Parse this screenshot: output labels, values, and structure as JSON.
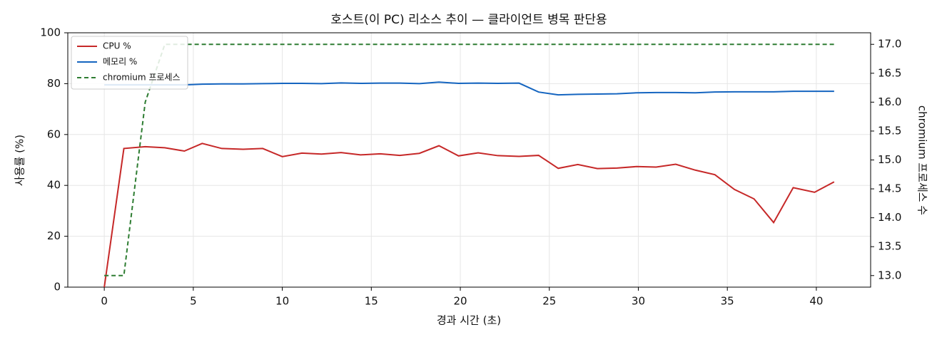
{
  "chart_data": {
    "type": "line",
    "title": "호스트(이 PC) 리소스 추이 — 클라이언트 병목 판단용",
    "x_label": "경과 시간 (초)",
    "y_label": "사용률 (%)",
    "y2_label": "chromium 프로세스 수",
    "x": [
      0,
      1.1,
      2.3,
      3.4,
      4.5,
      5.5,
      6.6,
      7.8,
      8.9,
      10.0,
      11.1,
      12.2,
      13.3,
      14.4,
      15.5,
      16.6,
      17.7,
      18.8,
      19.9,
      21.0,
      22.1,
      23.3,
      24.4,
      25.5,
      26.6,
      27.7,
      28.8,
      29.9,
      31.0,
      32.1,
      33.2,
      34.3,
      35.4,
      36.5,
      37.6,
      38.7,
      39.9,
      41.0
    ],
    "series": [
      {
        "name": "CPU %",
        "color": "#c62828",
        "dash": false,
        "values": [
          0,
          54.5,
          55.2,
          54.8,
          53.5,
          56.5,
          54.5,
          54.2,
          54.5,
          51.3,
          52.7,
          52.3,
          52.9,
          52.0,
          52.4,
          51.8,
          52.6,
          55.6,
          51.6,
          52.8,
          51.7,
          51.4,
          51.8,
          46.7,
          48.2,
          46.6,
          46.8,
          47.4,
          47.2,
          48.3,
          46.0,
          44.2,
          38.4,
          34.7,
          25.4,
          39.1,
          37.3,
          41.4
        ]
      },
      {
        "name": "메모리 %",
        "color": "#1565c0",
        "dash": false,
        "values": [
          79.5,
          79.5,
          79.5,
          79.5,
          79.5,
          79.8,
          79.9,
          79.9,
          80.0,
          80.1,
          80.1,
          80.0,
          80.3,
          80.1,
          80.2,
          80.2,
          80.0,
          80.6,
          80.1,
          80.2,
          80.1,
          80.2,
          76.7,
          75.6,
          75.8,
          75.9,
          76.0,
          76.4,
          76.5,
          76.5,
          76.4,
          76.7,
          76.8,
          76.8,
          76.8,
          77.0,
          77.0,
          77.0
        ]
      },
      {
        "name": "chromium 프로세스",
        "color": "#2e7d32",
        "dash": true,
        "axis": "y2",
        "values": [
          13,
          13,
          16,
          17,
          17,
          17,
          17,
          17,
          17,
          17,
          17,
          17,
          17,
          17,
          17,
          17,
          17,
          17,
          17,
          17,
          17,
          17,
          17,
          17,
          17,
          17,
          17,
          17,
          17,
          17,
          17,
          17,
          17,
          17,
          17,
          17,
          17,
          17
        ]
      }
    ],
    "xlim": [
      -2.05,
      43.05
    ],
    "xticks": [
      0,
      5,
      10,
      15,
      20,
      25,
      30,
      35,
      40
    ],
    "ylim": [
      0,
      100
    ],
    "yticks": [
      0,
      20,
      40,
      60,
      80,
      100
    ],
    "y2lim": [
      12.8,
      17.2
    ],
    "y2ticks": [
      {
        "value": 13,
        "label": "13.0"
      },
      13.5,
      {
        "value": 14,
        "label": "14.0"
      },
      14.5,
      {
        "value": 15,
        "label": "15.0"
      },
      15.5,
      {
        "value": 16,
        "label": "16.0"
      },
      16.5,
      {
        "value": 17,
        "label": "17.0"
      }
    ],
    "grid": true,
    "legend": "upper-left"
  }
}
